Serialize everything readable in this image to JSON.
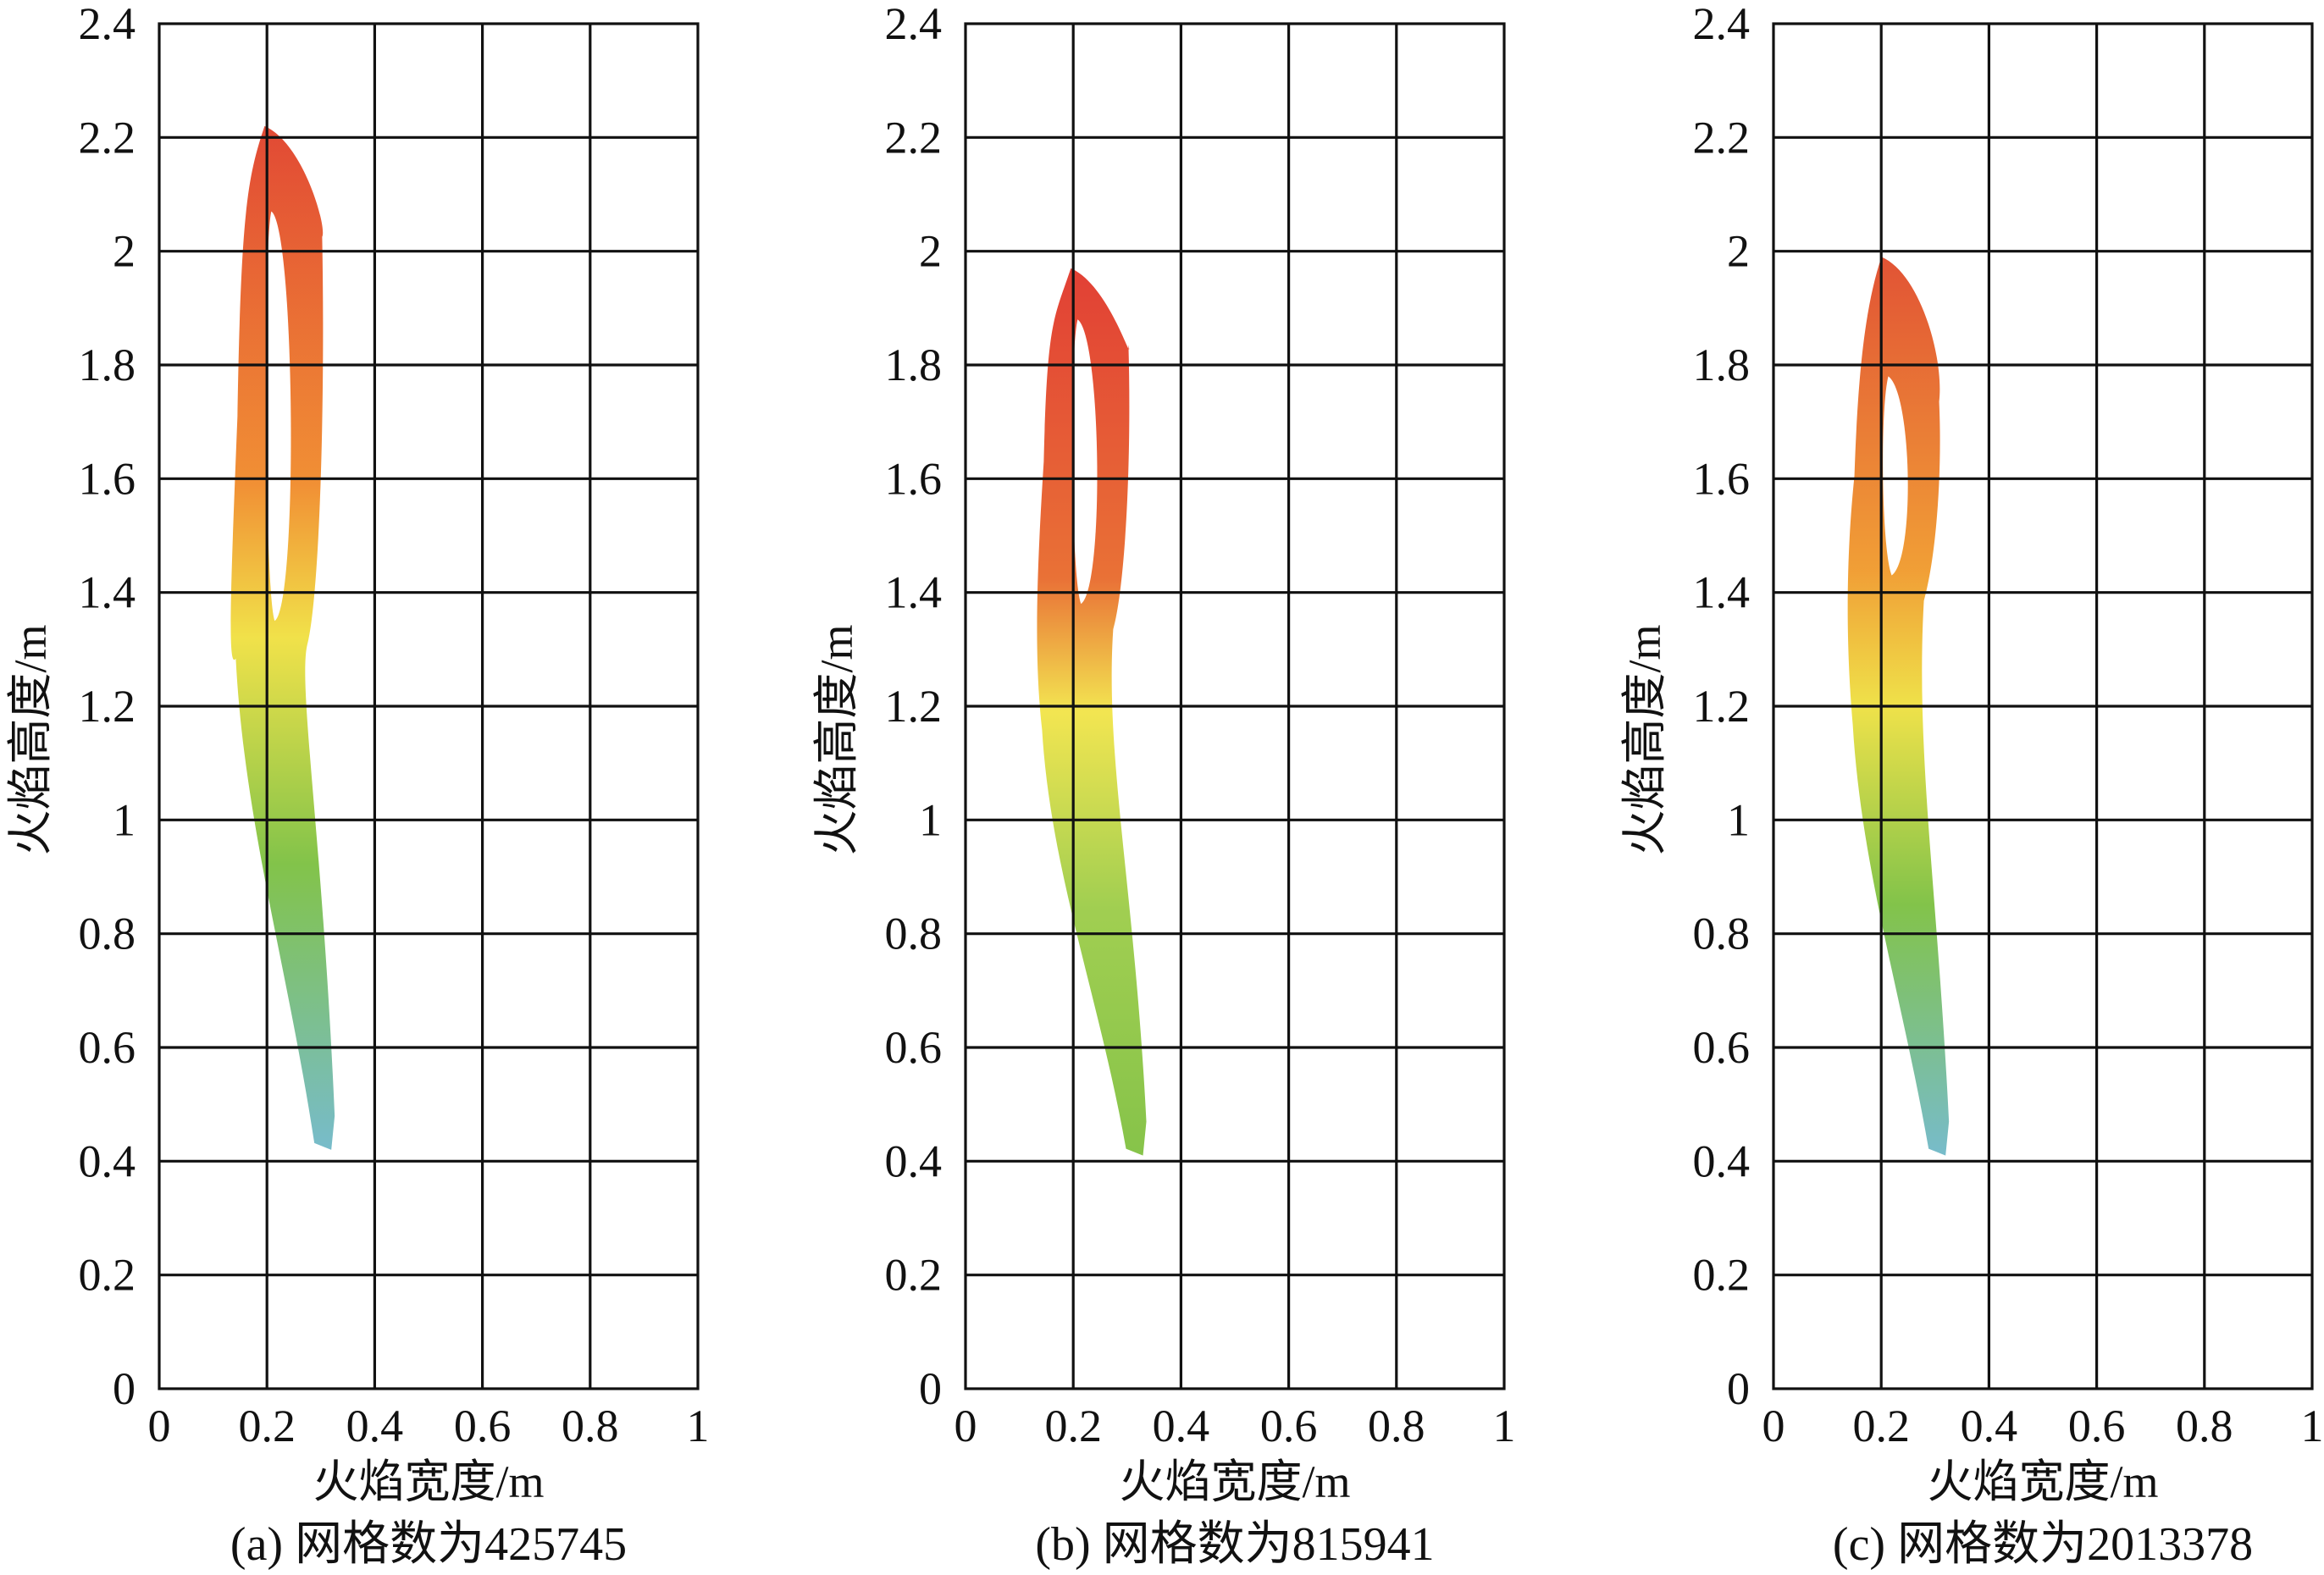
{
  "chart_data": [
    {
      "type": "heatmap",
      "title": "",
      "caption": "(a) 网格数为425745",
      "xlabel": "火焰宽度/m",
      "ylabel": "火焰高度/m",
      "xlim": [
        0,
        1
      ],
      "ylim": [
        0,
        2.4
      ],
      "xticks": [
        0,
        0.2,
        0.4,
        0.6,
        0.8,
        1
      ],
      "xtick_labels": [
        "0",
        "0.2",
        "0.4",
        "0.6",
        "0.8",
        "1"
      ],
      "yticks": [
        0,
        0.2,
        0.4,
        0.6,
        0.8,
        1.0,
        1.2,
        1.4,
        1.6,
        1.8,
        2.0,
        2.2,
        2.4
      ],
      "ytick_labels": [
        "0",
        "0.2",
        "0.4",
        "0.6",
        "0.8",
        "1",
        "1.2",
        "1.4",
        "1.6",
        "1.8",
        "2",
        "2.2",
        "2.4"
      ],
      "grid": true,
      "flame": {
        "top_height": 2.22,
        "top_x": 0.205,
        "tip_height": 0.42,
        "tip_x": 0.31,
        "hole_bottom": 1.35,
        "hole_top": 2.07,
        "colors": {
          "top": "#e0402a",
          "upper": "#f08a2a",
          "mid": "#f0e040",
          "lower": "#7cc040",
          "base": "#70b8c8"
        }
      }
    },
    {
      "type": "heatmap",
      "title": "",
      "caption": "(b) 网格数为815941",
      "xlabel": "火焰宽度/m",
      "ylabel": "火焰高度/m",
      "xlim": [
        0,
        1
      ],
      "ylim": [
        0,
        2.4
      ],
      "xticks": [
        0,
        0.2,
        0.4,
        0.6,
        0.8,
        1
      ],
      "xtick_labels": [
        "0",
        "0.2",
        "0.4",
        "0.6",
        "0.8",
        "1"
      ],
      "yticks": [
        0,
        0.2,
        0.4,
        0.6,
        0.8,
        1.0,
        1.2,
        1.4,
        1.6,
        1.8,
        2.0,
        2.2,
        2.4
      ],
      "ytick_labels": [
        "0",
        "0.2",
        "0.4",
        "0.6",
        "0.8",
        "1",
        "1.2",
        "1.4",
        "1.6",
        "1.8",
        "2",
        "2.2",
        "2.4"
      ],
      "grid": true,
      "flame": {
        "top_height": 1.97,
        "top_x": 0.205,
        "tip_height": 0.41,
        "tip_x": 0.32,
        "hole_bottom": 1.38,
        "hole_top": 1.88,
        "colors": {
          "top": "#e0362a",
          "upper": "#e86a2c",
          "mid": "#f2e448",
          "lower": "#9ccc48",
          "base": "#80c040"
        }
      }
    },
    {
      "type": "heatmap",
      "title": "",
      "caption": "(c) 网格数为2013378",
      "xlabel": "火焰宽度/m",
      "ylabel": "火焰高度/m",
      "xlim": [
        0,
        1
      ],
      "ylim": [
        0,
        2.4
      ],
      "xticks": [
        0,
        0.2,
        0.4,
        0.6,
        0.8,
        1
      ],
      "xtick_labels": [
        "0",
        "0.2",
        "0.4",
        "0.6",
        "0.8",
        "1"
      ],
      "yticks": [
        0,
        0.2,
        0.4,
        0.6,
        0.8,
        1.0,
        1.2,
        1.4,
        1.6,
        1.8,
        2.0,
        2.2,
        2.4
      ],
      "ytick_labels": [
        "0",
        "0.2",
        "0.4",
        "0.6",
        "0.8",
        "1",
        "1.2",
        "1.4",
        "1.6",
        "1.8",
        "2",
        "2.2",
        "2.4"
      ],
      "grid": true,
      "flame": {
        "top_height": 1.99,
        "top_x": 0.21,
        "tip_height": 0.41,
        "tip_x": 0.31,
        "hole_bottom": 1.43,
        "hole_top": 1.78,
        "colors": {
          "top": "#e04a2a",
          "upper": "#f09a2c",
          "mid": "#eee040",
          "lower": "#7cc040",
          "base": "#70b8c8"
        }
      }
    }
  ]
}
